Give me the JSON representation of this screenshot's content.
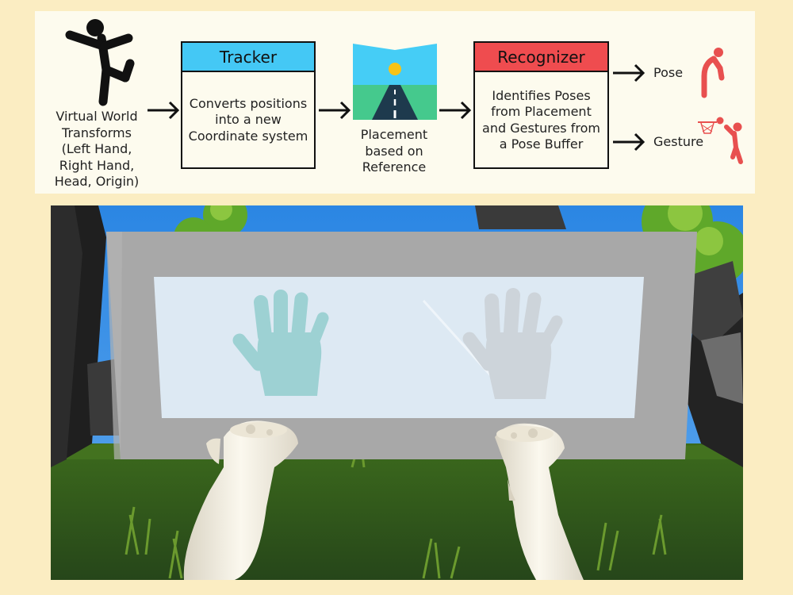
{
  "diagram": {
    "input_label": "Virtual World Transforms (Left Hand, Right Hand, Head, Origin)",
    "tracker": {
      "title": "Tracker",
      "body": "Converts positions into a new Coordinate system",
      "header_color": "#44c8f5"
    },
    "placement_label": "Placement based on Reference",
    "recognizer": {
      "title": "Recognizer",
      "body": "Identifies Poses from Placement and Gestures from a Pose Buffer",
      "header_color": "#ef4c4f"
    },
    "outputs": [
      {
        "label": "Pose",
        "icon": "person-pose-icon"
      },
      {
        "label": "Gesture",
        "icon": "basketball-gesture-icon"
      }
    ],
    "colors": {
      "figure": "#111111",
      "output_figures": "#e8504f"
    }
  },
  "vr_scene": {
    "description_icons": [
      "left-hand-icon",
      "right-hand-icon",
      "left-controller-icon",
      "right-controller-icon"
    ],
    "colors": {
      "sky": "#3a8fe6",
      "grass": "#2f5418",
      "panel_frame": "#a8a8a8",
      "panel_screen": "#dde9f3",
      "active_hand": "#9dd1d3",
      "inactive_hand": "#cdd4da",
      "controller": "#f0ece2"
    }
  }
}
